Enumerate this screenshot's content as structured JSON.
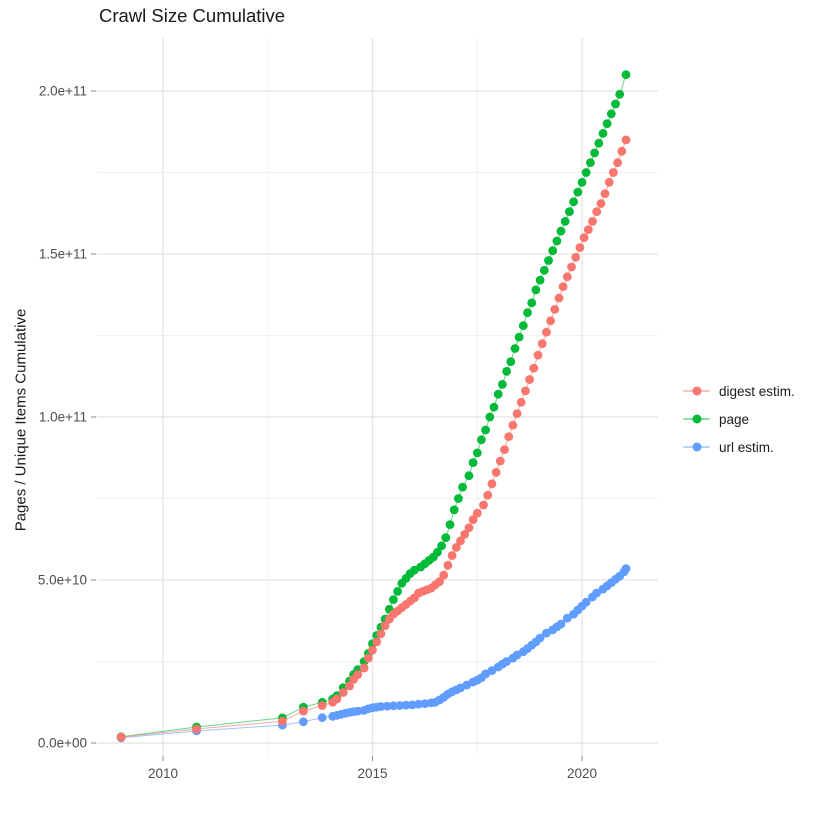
{
  "chart_data": {
    "type": "scatter",
    "title": "Crawl Size Cumulative",
    "xlabel": "",
    "ylabel": "Pages / Unique Items Cumulative",
    "grid": true,
    "legend_position": "right",
    "background": "#ffffff",
    "grid_major_color": "#e4e4e4",
    "grid_minor_color": "#f1f1f1",
    "tick_color": "#8a8a8a",
    "tick_label_color": "#4d4d4d",
    "x_axis": {
      "range": [
        2008.4,
        2021.8
      ],
      "ticks": [
        {
          "label": "2010",
          "value": 2010
        },
        {
          "label": "2015",
          "value": 2015
        },
        {
          "label": "2020",
          "value": 2020
        }
      ],
      "minor": [
        2012.5,
        2017.5
      ]
    },
    "y_axis": {
      "range": [
        -4000000000.0,
        216000000000.0
      ],
      "ticks": [
        {
          "label": "0.0e+00",
          "value": 0
        },
        {
          "label": "5.0e+10",
          "value": 50000000000.0
        },
        {
          "label": "1.0e+11",
          "value": 100000000000.0
        },
        {
          "label": "1.5e+11",
          "value": 150000000000.0
        },
        {
          "label": "2.0e+11",
          "value": 200000000000.0
        }
      ],
      "minor": [
        25000000000.0,
        75000000000.0,
        125000000000.0,
        175000000000.0
      ]
    },
    "series": [
      {
        "name": "digest estim.",
        "color": "#F8766D",
        "points": [
          [
            2009.0,
            1800000000.0
          ],
          [
            2010.8,
            4300000000.0
          ],
          [
            2012.85,
            6700000000.0
          ],
          [
            2013.35,
            9800000000.0
          ],
          [
            2013.8,
            11500000000.0
          ],
          [
            2014.05,
            12500000000.0
          ],
          [
            2014.15,
            13500000000.0
          ],
          [
            2014.3,
            15500000000.0
          ],
          [
            2014.45,
            17500000000.0
          ],
          [
            2014.55,
            19500000000.0
          ],
          [
            2014.65,
            21000000000.0
          ],
          [
            2014.8,
            23000000000.0
          ],
          [
            2014.9,
            26000000000.0
          ],
          [
            2015.0,
            28500000000.0
          ],
          [
            2015.1,
            31000000000.0
          ],
          [
            2015.2,
            33500000000.0
          ],
          [
            2015.3,
            36000000000.0
          ],
          [
            2015.4,
            38000000000.0
          ],
          [
            2015.5,
            39500000000.0
          ],
          [
            2015.6,
            40500000000.0
          ],
          [
            2015.7,
            41500000000.0
          ],
          [
            2015.8,
            42500000000.0
          ],
          [
            2015.9,
            43500000000.0
          ],
          [
            2016.0,
            44500000000.0
          ],
          [
            2016.1,
            46000000000.0
          ],
          [
            2016.2,
            46500000000.0
          ],
          [
            2016.3,
            47000000000.0
          ],
          [
            2016.4,
            47500000000.0
          ],
          [
            2016.5,
            48500000000.0
          ],
          [
            2016.6,
            49500000000.0
          ],
          [
            2016.7,
            51500000000.0
          ],
          [
            2016.8,
            54500000000.0
          ],
          [
            2016.9,
            57500000000.0
          ],
          [
            2017.0,
            60000000000.0
          ],
          [
            2017.1,
            62000000000.0
          ],
          [
            2017.2,
            64000000000.0
          ],
          [
            2017.3,
            66000000000.0
          ],
          [
            2017.4,
            68500000000.0
          ],
          [
            2017.5,
            70500000000.0
          ],
          [
            2017.65,
            73000000000.0
          ],
          [
            2017.75,
            76000000000.0
          ],
          [
            2017.85,
            79500000000.0
          ],
          [
            2017.95,
            83000000000.0
          ],
          [
            2018.05,
            86500000000.0
          ],
          [
            2018.15,
            90000000000.0
          ],
          [
            2018.25,
            94000000000.0
          ],
          [
            2018.35,
            97500000000.0
          ],
          [
            2018.45,
            101000000000.0
          ],
          [
            2018.55,
            104500000000.0
          ],
          [
            2018.65,
            108000000000.0
          ],
          [
            2018.75,
            111500000000.0
          ],
          [
            2018.85,
            115000000000.0
          ],
          [
            2018.95,
            119000000000.0
          ],
          [
            2019.05,
            122500000000.0
          ],
          [
            2019.15,
            126000000000.0
          ],
          [
            2019.25,
            129500000000.0
          ],
          [
            2019.35,
            133000000000.0
          ],
          [
            2019.45,
            136500000000.0
          ],
          [
            2019.55,
            140000000000.0
          ],
          [
            2019.65,
            143000000000.0
          ],
          [
            2019.75,
            146000000000.0
          ],
          [
            2019.85,
            149000000000.0
          ],
          [
            2019.95,
            152000000000.0
          ],
          [
            2020.05,
            155000000000.0
          ],
          [
            2020.15,
            157500000000.0
          ],
          [
            2020.25,
            160000000000.0
          ],
          [
            2020.35,
            163000000000.0
          ],
          [
            2020.45,
            165500000000.0
          ],
          [
            2020.55,
            168500000000.0
          ],
          [
            2020.65,
            172000000000.0
          ],
          [
            2020.75,
            175000000000.0
          ],
          [
            2020.85,
            178000000000.0
          ],
          [
            2020.95,
            181500000000.0
          ],
          [
            2021.05,
            185000000000.0
          ]
        ]
      },
      {
        "name": "page",
        "color": "#00BA38",
        "points": [
          [
            2009.0,
            1900000000.0
          ],
          [
            2010.8,
            4900000000.0
          ],
          [
            2012.85,
            7700000000.0
          ],
          [
            2013.35,
            11000000000.0
          ],
          [
            2013.8,
            12500000000.0
          ],
          [
            2014.05,
            13500000000.0
          ],
          [
            2014.15,
            14500000000.0
          ],
          [
            2014.3,
            17000000000.0
          ],
          [
            2014.45,
            19000000000.0
          ],
          [
            2014.55,
            21000000000.0
          ],
          [
            2014.65,
            22500000000.0
          ],
          [
            2014.8,
            25000000000.0
          ],
          [
            2014.9,
            27500000000.0
          ],
          [
            2015.0,
            30500000000.0
          ],
          [
            2015.1,
            33000000000.0
          ],
          [
            2015.2,
            35500000000.0
          ],
          [
            2015.3,
            38000000000.0
          ],
          [
            2015.4,
            41000000000.0
          ],
          [
            2015.5,
            44000000000.0
          ],
          [
            2015.6,
            46500000000.0
          ],
          [
            2015.7,
            49000000000.0
          ],
          [
            2015.8,
            50500000000.0
          ],
          [
            2015.9,
            52000000000.0
          ],
          [
            2016.0,
            53000000000.0
          ],
          [
            2016.15,
            54000000000.0
          ],
          [
            2016.25,
            55000000000.0
          ],
          [
            2016.35,
            56000000000.0
          ],
          [
            2016.45,
            57000000000.0
          ],
          [
            2016.55,
            58500000000.0
          ],
          [
            2016.65,
            60500000000.0
          ],
          [
            2016.75,
            63000000000.0
          ],
          [
            2016.85,
            67000000000.0
          ],
          [
            2016.95,
            71500000000.0
          ],
          [
            2017.05,
            75000000000.0
          ],
          [
            2017.15,
            78500000000.0
          ],
          [
            2017.3,
            82000000000.0
          ],
          [
            2017.4,
            86000000000.0
          ],
          [
            2017.5,
            89000000000.0
          ],
          [
            2017.6,
            93000000000.0
          ],
          [
            2017.7,
            96000000000.0
          ],
          [
            2017.8,
            100000000000.0
          ],
          [
            2017.9,
            103000000000.0
          ],
          [
            2018.0,
            107000000000.0
          ],
          [
            2018.1,
            110000000000.0
          ],
          [
            2018.2,
            114000000000.0
          ],
          [
            2018.3,
            117000000000.0
          ],
          [
            2018.4,
            121000000000.0
          ],
          [
            2018.5,
            124500000000.0
          ],
          [
            2018.6,
            128000000000.0
          ],
          [
            2018.7,
            132000000000.0
          ],
          [
            2018.8,
            135000000000.0
          ],
          [
            2018.9,
            139000000000.0
          ],
          [
            2019.0,
            142000000000.0
          ],
          [
            2019.1,
            145000000000.0
          ],
          [
            2019.2,
            148000000000.0
          ],
          [
            2019.3,
            151000000000.0
          ],
          [
            2019.4,
            154000000000.0
          ],
          [
            2019.5,
            157000000000.0
          ],
          [
            2019.6,
            160000000000.0
          ],
          [
            2019.7,
            163000000000.0
          ],
          [
            2019.8,
            166000000000.0
          ],
          [
            2019.9,
            169000000000.0
          ],
          [
            2020.0,
            172000000000.0
          ],
          [
            2020.1,
            175000000000.0
          ],
          [
            2020.2,
            178000000000.0
          ],
          [
            2020.3,
            181000000000.0
          ],
          [
            2020.4,
            184000000000.0
          ],
          [
            2020.5,
            187000000000.0
          ],
          [
            2020.6,
            190000000000.0
          ],
          [
            2020.7,
            193000000000.0
          ],
          [
            2020.8,
            196000000000.0
          ],
          [
            2020.9,
            199000000000.0
          ],
          [
            2021.05,
            205000000000.0
          ]
        ]
      },
      {
        "name": "url estim.",
        "color": "#619CFF",
        "points": [
          [
            2009.0,
            1600000000.0
          ],
          [
            2010.8,
            3700000000.0
          ],
          [
            2012.85,
            5500000000.0
          ],
          [
            2013.35,
            6500000000.0
          ],
          [
            2013.8,
            7800000000.0
          ],
          [
            2014.05,
            8200000000.0
          ],
          [
            2014.15,
            8500000000.0
          ],
          [
            2014.25,
            8800000000.0
          ],
          [
            2014.35,
            9100000000.0
          ],
          [
            2014.45,
            9400000000.0
          ],
          [
            2014.55,
            9600000000.0
          ],
          [
            2014.65,
            9800000000.0
          ],
          [
            2014.8,
            10000000000.0
          ],
          [
            2014.9,
            10500000000.0
          ],
          [
            2015.0,
            10800000000.0
          ],
          [
            2015.1,
            11000000000.0
          ],
          [
            2015.2,
            11200000000.0
          ],
          [
            2015.35,
            11300000000.0
          ],
          [
            2015.5,
            11400000000.0
          ],
          [
            2015.65,
            11500000000.0
          ],
          [
            2015.8,
            11600000000.0
          ],
          [
            2015.95,
            11700000000.0
          ],
          [
            2016.1,
            11900000000.0
          ],
          [
            2016.25,
            12100000000.0
          ],
          [
            2016.4,
            12300000000.0
          ],
          [
            2016.5,
            12500000000.0
          ],
          [
            2016.6,
            13200000000.0
          ],
          [
            2016.7,
            14000000000.0
          ],
          [
            2016.8,
            15000000000.0
          ],
          [
            2016.9,
            15700000000.0
          ],
          [
            2017.0,
            16300000000.0
          ],
          [
            2017.1,
            16900000000.0
          ],
          [
            2017.25,
            17800000000.0
          ],
          [
            2017.4,
            18700000000.0
          ],
          [
            2017.5,
            19300000000.0
          ],
          [
            2017.6,
            20000000000.0
          ],
          [
            2017.7,
            21200000000.0
          ],
          [
            2017.85,
            22200000000.0
          ],
          [
            2018.0,
            23300000000.0
          ],
          [
            2018.1,
            24200000000.0
          ],
          [
            2018.2,
            25000000000.0
          ],
          [
            2018.35,
            26000000000.0
          ],
          [
            2018.45,
            27000000000.0
          ],
          [
            2018.6,
            28000000000.0
          ],
          [
            2018.7,
            29000000000.0
          ],
          [
            2018.8,
            30000000000.0
          ],
          [
            2018.9,
            31000000000.0
          ],
          [
            2019.0,
            32200000000.0
          ],
          [
            2019.15,
            33700000000.0
          ],
          [
            2019.3,
            34700000000.0
          ],
          [
            2019.4,
            35600000000.0
          ],
          [
            2019.5,
            36500000000.0
          ],
          [
            2019.65,
            38300000000.0
          ],
          [
            2019.8,
            39500000000.0
          ],
          [
            2019.9,
            40800000000.0
          ],
          [
            2020.0,
            42000000000.0
          ],
          [
            2020.1,
            43200000000.0
          ],
          [
            2020.25,
            44800000000.0
          ],
          [
            2020.35,
            46000000000.0
          ],
          [
            2020.5,
            47200000000.0
          ],
          [
            2020.6,
            48200000000.0
          ],
          [
            2020.7,
            49200000000.0
          ],
          [
            2020.8,
            50200000000.0
          ],
          [
            2020.9,
            51200000000.0
          ],
          [
            2021.0,
            52500000000.0
          ],
          [
            2021.05,
            53500000000.0
          ]
        ]
      }
    ]
  }
}
